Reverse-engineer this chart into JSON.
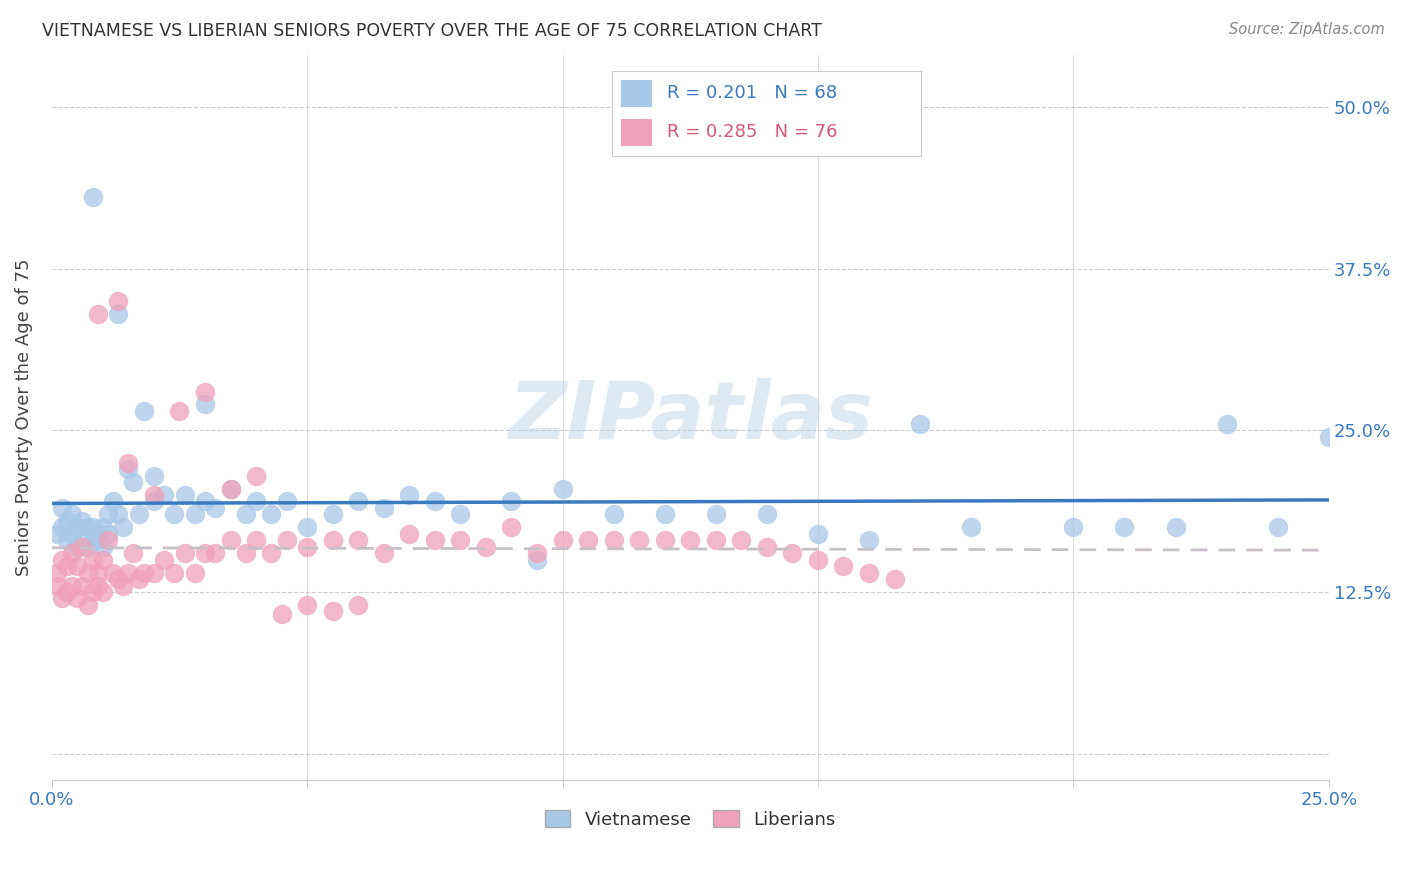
{
  "title": "VIETNAMESE VS LIBERIAN SENIORS POVERTY OVER THE AGE OF 75 CORRELATION CHART",
  "source": "Source: ZipAtlas.com",
  "ylabel": "Seniors Poverty Over the Age of 75",
  "xlim": [
    0,
    0.25
  ],
  "ylim": [
    -0.02,
    0.54
  ],
  "xticks": [
    0.0,
    0.05,
    0.1,
    0.15,
    0.2,
    0.25
  ],
  "xticklabels": [
    "0.0%",
    "",
    "",
    "",
    "",
    "25.0%"
  ],
  "yticks": [
    0.0,
    0.125,
    0.25,
    0.375,
    0.5
  ],
  "yticklabels": [
    "",
    "12.5%",
    "25.0%",
    "37.5%",
    "50.0%"
  ],
  "viet_R": 0.201,
  "viet_N": 68,
  "lib_R": 0.285,
  "lib_N": 76,
  "viet_color": "#a8c8e8",
  "lib_color": "#f0a0b8",
  "viet_line_color": "#3a7abf",
  "lib_line_color": "#c8c0c8",
  "watermark": "ZIPatlas",
  "legend_label_viet": "Vietnamese",
  "legend_label_lib": "Liberians",
  "viet_x": [
    0.001,
    0.002,
    0.002,
    0.003,
    0.003,
    0.004,
    0.004,
    0.005,
    0.005,
    0.006,
    0.006,
    0.007,
    0.007,
    0.008,
    0.008,
    0.009,
    0.009,
    0.01,
    0.01,
    0.011,
    0.011,
    0.012,
    0.013,
    0.014,
    0.015,
    0.016,
    0.017,
    0.018,
    0.02,
    0.022,
    0.024,
    0.026,
    0.028,
    0.03,
    0.032,
    0.035,
    0.038,
    0.04,
    0.043,
    0.046,
    0.05,
    0.055,
    0.06,
    0.065,
    0.07,
    0.075,
    0.08,
    0.09,
    0.095,
    0.1,
    0.11,
    0.12,
    0.13,
    0.14,
    0.15,
    0.16,
    0.17,
    0.18,
    0.2,
    0.21,
    0.22,
    0.23,
    0.24,
    0.25,
    0.013,
    0.02,
    0.008,
    0.03
  ],
  "viet_y": [
    0.17,
    0.175,
    0.19,
    0.165,
    0.18,
    0.17,
    0.185,
    0.16,
    0.175,
    0.165,
    0.18,
    0.175,
    0.16,
    0.165,
    0.175,
    0.17,
    0.165,
    0.175,
    0.16,
    0.185,
    0.17,
    0.195,
    0.185,
    0.175,
    0.22,
    0.21,
    0.185,
    0.265,
    0.195,
    0.2,
    0.185,
    0.2,
    0.185,
    0.195,
    0.19,
    0.205,
    0.185,
    0.195,
    0.185,
    0.195,
    0.175,
    0.185,
    0.195,
    0.19,
    0.2,
    0.195,
    0.185,
    0.195,
    0.15,
    0.205,
    0.185,
    0.185,
    0.185,
    0.185,
    0.17,
    0.165,
    0.255,
    0.175,
    0.175,
    0.175,
    0.175,
    0.255,
    0.175,
    0.245,
    0.34,
    0.215,
    0.43,
    0.27
  ],
  "lib_x": [
    0.001,
    0.001,
    0.002,
    0.002,
    0.003,
    0.003,
    0.004,
    0.004,
    0.005,
    0.005,
    0.006,
    0.006,
    0.007,
    0.007,
    0.008,
    0.008,
    0.009,
    0.009,
    0.01,
    0.01,
    0.011,
    0.012,
    0.013,
    0.014,
    0.015,
    0.016,
    0.017,
    0.018,
    0.02,
    0.022,
    0.024,
    0.026,
    0.028,
    0.03,
    0.032,
    0.035,
    0.038,
    0.04,
    0.043,
    0.046,
    0.05,
    0.055,
    0.06,
    0.065,
    0.07,
    0.075,
    0.08,
    0.085,
    0.09,
    0.095,
    0.1,
    0.105,
    0.11,
    0.115,
    0.12,
    0.125,
    0.13,
    0.135,
    0.14,
    0.145,
    0.15,
    0.155,
    0.16,
    0.165,
    0.013,
    0.02,
    0.03,
    0.04,
    0.05,
    0.06,
    0.009,
    0.015,
    0.025,
    0.035,
    0.045,
    0.055
  ],
  "lib_y": [
    0.13,
    0.14,
    0.12,
    0.15,
    0.125,
    0.145,
    0.13,
    0.155,
    0.12,
    0.145,
    0.16,
    0.13,
    0.115,
    0.14,
    0.125,
    0.15,
    0.13,
    0.14,
    0.125,
    0.15,
    0.165,
    0.14,
    0.135,
    0.13,
    0.14,
    0.155,
    0.135,
    0.14,
    0.14,
    0.15,
    0.14,
    0.155,
    0.14,
    0.155,
    0.155,
    0.165,
    0.155,
    0.165,
    0.155,
    0.165,
    0.16,
    0.165,
    0.165,
    0.155,
    0.17,
    0.165,
    0.165,
    0.16,
    0.175,
    0.155,
    0.165,
    0.165,
    0.165,
    0.165,
    0.165,
    0.165,
    0.165,
    0.165,
    0.16,
    0.155,
    0.15,
    0.145,
    0.14,
    0.135,
    0.35,
    0.2,
    0.28,
    0.215,
    0.115,
    0.115,
    0.34,
    0.225,
    0.265,
    0.205,
    0.108,
    0.11
  ]
}
